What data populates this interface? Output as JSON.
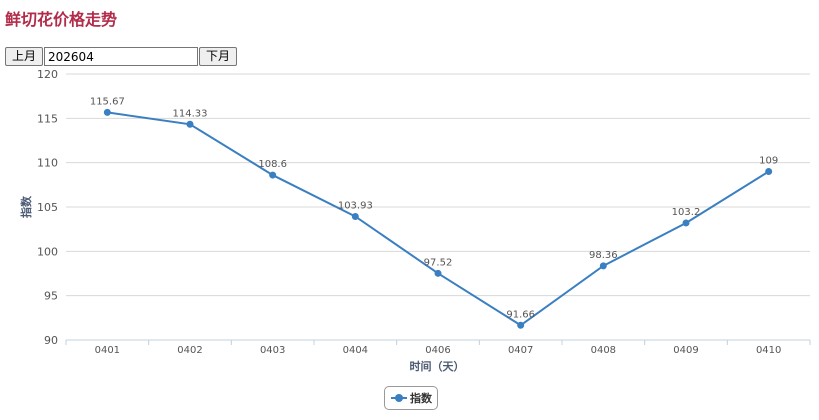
{
  "page": {
    "title": "鲜切花价格走势"
  },
  "toolbar": {
    "prev_label": "上月",
    "month_value": "202604",
    "next_label": "下月"
  },
  "colors": {
    "series": "#3a7fc1",
    "title": "#b22c4a"
  },
  "chart_data": {
    "type": "line",
    "title": "",
    "xlabel": "时间（天）",
    "ylabel": "指数",
    "categories": [
      "0401",
      "0402",
      "0403",
      "0404",
      "0406",
      "0407",
      "0408",
      "0409",
      "0410"
    ],
    "series": [
      {
        "name": "指数",
        "values": [
          115.67,
          114.33,
          108.6,
          103.93,
          97.52,
          91.66,
          98.36,
          103.2,
          109
        ]
      }
    ],
    "data_labels": [
      "115.67",
      "114.33",
      "108.6",
      "103.93",
      "97.52",
      "91.66",
      "98.36",
      "103.2",
      "109"
    ],
    "yticks": [
      90,
      95,
      100,
      105,
      110,
      115,
      120
    ],
    "ylim": [
      90,
      120
    ],
    "grid": true,
    "legend": "bottom-center"
  }
}
